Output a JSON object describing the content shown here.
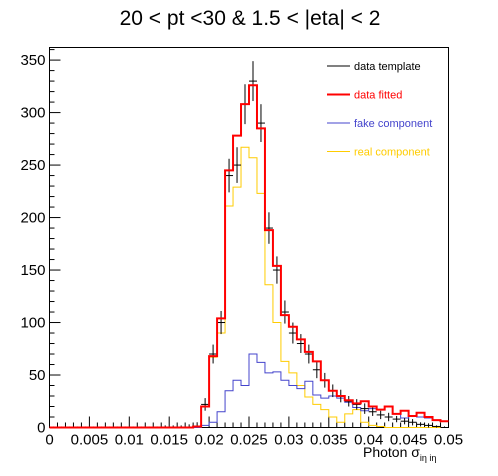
{
  "chart_data": {
    "type": "histogram",
    "title": "20 < pt <30 & 1.5 < |eta| < 2",
    "xlabel": "Photon σ",
    "xlabel_sub": "iη iη",
    "xlim": [
      0,
      0.05
    ],
    "ylim": [
      0,
      360
    ],
    "x_ticks": [
      "0",
      "0.005",
      "0.01",
      "0.015",
      "0.02",
      "0.025",
      "0.03",
      "0.035",
      "0.04",
      "0.045",
      "0.05"
    ],
    "x_tick_values": [
      0,
      0.005,
      0.01,
      0.015,
      0.02,
      0.025,
      0.03,
      0.035,
      0.04,
      0.045,
      0.05
    ],
    "y_ticks": [
      "0",
      "50",
      "100",
      "150",
      "200",
      "250",
      "300",
      "350"
    ],
    "y_tick_values": [
      0,
      50,
      100,
      150,
      200,
      250,
      300,
      350
    ],
    "bin_edges_start": 0,
    "bin_width": 0.001,
    "legend": {
      "placement": "top-right",
      "entries": [
        {
          "label": "data template",
          "color": "#000000"
        },
        {
          "label": "data fitted",
          "color": "#ff0000"
        },
        {
          "label": "fake component",
          "color": "#4444cc"
        },
        {
          "label": "real component",
          "color": "#ffcc00"
        }
      ]
    },
    "series": [
      {
        "name": "data template",
        "color": "#000000",
        "style": "errorbar",
        "values": [
          0,
          0,
          0,
          0,
          0,
          0,
          0,
          0,
          0,
          0,
          0,
          0,
          0,
          0,
          0,
          0,
          0,
          0,
          1,
          22,
          70,
          100,
          240,
          250,
          308,
          330,
          290,
          190,
          150,
          110,
          90,
          80,
          70,
          55,
          45,
          35,
          30,
          25,
          22,
          18,
          15,
          12,
          10,
          8,
          6,
          5,
          3,
          2,
          1,
          0
        ],
        "errors": [
          1,
          1,
          1,
          1,
          1,
          1,
          1,
          1,
          1,
          1,
          1,
          1,
          1,
          1,
          2,
          2,
          2,
          3,
          4,
          6,
          9,
          11,
          16,
          17,
          19,
          19,
          18,
          15,
          13,
          11,
          10,
          9,
          9,
          8,
          7,
          6,
          6,
          5,
          5,
          5,
          4,
          4,
          4,
          3,
          3,
          3,
          2,
          2,
          1,
          1
        ]
      },
      {
        "name": "data fitted",
        "color": "#ff0000",
        "style": "step",
        "values": [
          0,
          0,
          0,
          0,
          0,
          0,
          0,
          0,
          0,
          0,
          0,
          0,
          0,
          0,
          0,
          0,
          0,
          0,
          1,
          20,
          68,
          104,
          245,
          278,
          308,
          326,
          285,
          188,
          154,
          107,
          96,
          84,
          72,
          63,
          45,
          35,
          30,
          26,
          23,
          25,
          20,
          17,
          20,
          13,
          16,
          11,
          14,
          10,
          7,
          6
        ]
      },
      {
        "name": "fake component",
        "color": "#4444cc",
        "style": "step",
        "values": [
          0,
          0,
          0,
          0,
          0,
          0,
          0,
          0,
          0,
          0,
          0,
          0,
          0,
          0,
          0,
          0,
          0,
          0,
          0,
          2,
          5,
          15,
          35,
          45,
          40,
          70,
          62,
          52,
          53,
          45,
          40,
          37,
          44,
          31,
          28,
          30,
          28,
          24,
          19,
          16,
          18,
          17,
          20,
          13,
          9,
          11,
          10,
          9,
          7,
          6
        ]
      },
      {
        "name": "real component",
        "color": "#ffcc00",
        "style": "step",
        "values": [
          0,
          0,
          0,
          0,
          0,
          0,
          0,
          0,
          0,
          0,
          0,
          0,
          0,
          0,
          0,
          0,
          0,
          0,
          0,
          20,
          67,
          90,
          211,
          229,
          267,
          257,
          223,
          136,
          100,
          63,
          52,
          40,
          29,
          22,
          17,
          10,
          5,
          13,
          17,
          5,
          2,
          1,
          0,
          0,
          0,
          0,
          0,
          0,
          0,
          0
        ]
      }
    ]
  }
}
